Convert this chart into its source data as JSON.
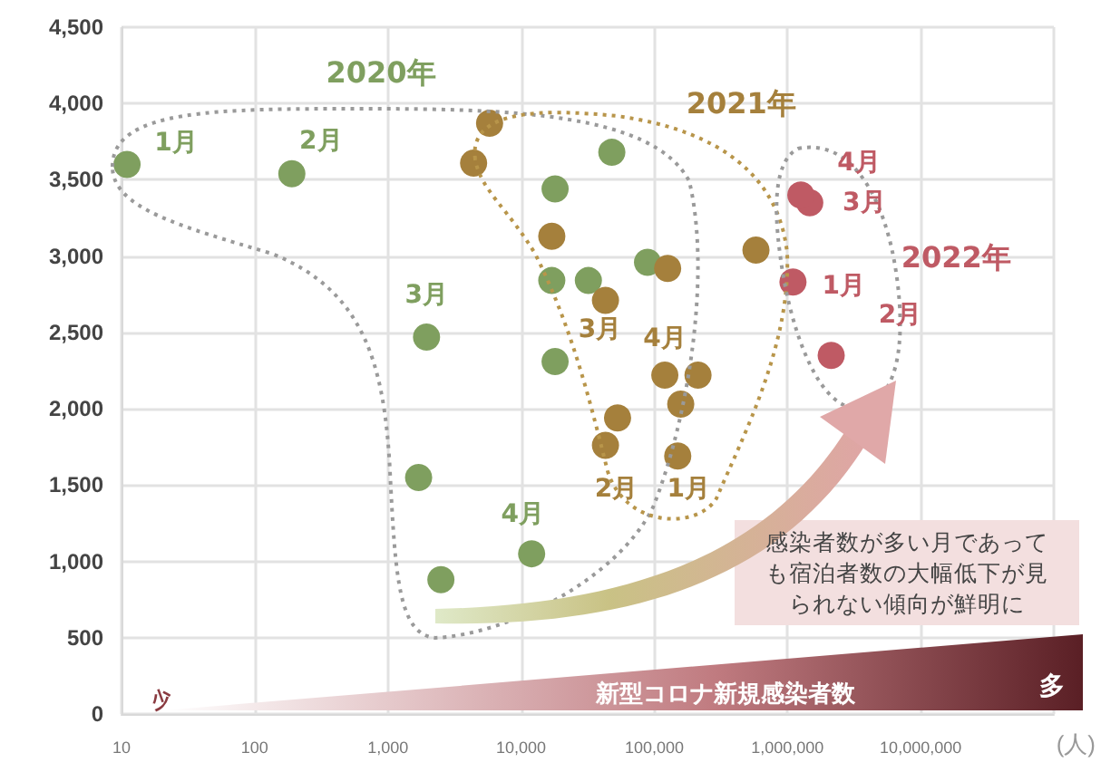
{
  "chart_data": {
    "type": "scatter",
    "xlabel": "(人)",
    "log": "x",
    "grid": true,
    "marker": "circle",
    "xlim": [
      10,
      100000000
    ],
    "xticks": [
      10,
      100,
      {
        "value": 1000,
        "label": "1,000"
      },
      {
        "value": 10000,
        "label": "10,000"
      },
      {
        "value": 100000,
        "label": "100,000"
      },
      {
        "value": 1000000,
        "label": "1,000,000"
      },
      {
        "value": 10000000,
        "label": "10,000,000"
      },
      {
        "value": 100000000,
        "label": null
      }
    ],
    "ylim": [
      0,
      4500
    ],
    "yticks": [
      0,
      500,
      {
        "value": 1000,
        "label": "1,000"
      },
      {
        "value": 1500,
        "label": "1,500"
      },
      {
        "value": 2000,
        "label": "2,000"
      },
      {
        "value": 2500,
        "label": "2,500"
      },
      {
        "value": 3000,
        "label": "3,000"
      },
      {
        "value": 3500,
        "label": "3,500"
      },
      {
        "value": 4000,
        "label": "4,000"
      },
      {
        "value": 4500,
        "label": "4,500"
      }
    ],
    "series": [
      {
        "name": "2020年",
        "color": "#7f9f5f",
        "x": [
          11,
          190,
          1950,
          12000,
          1700,
          2500,
          17000,
          18000,
          18000,
          32000,
          48000,
          89000
        ],
        "values": [
          3600,
          3540,
          2470,
          1050,
          1550,
          880,
          2840,
          3440,
          2310,
          2840,
          3680,
          2960
        ]
      },
      {
        "name": "2021年",
        "color": "#a5803c",
        "x": [
          150000,
          43000,
          43000,
          120000,
          5800,
          4400,
          17000,
          126000,
          580000,
          213000,
          158000,
          53000
        ],
        "values": [
          1690,
          1760,
          2710,
          2220,
          3870,
          3610,
          3130,
          2920,
          3040,
          2220,
          2030,
          1940
        ]
      },
      {
        "name": "2022年",
        "color": "#bf5a64",
        "x": [
          1100000,
          2130000,
          1470000,
          1260000
        ],
        "values": [
          2830,
          2350,
          3350,
          3400
        ]
      }
    ],
    "annotations": [
      {
        "text": "1月",
        "x": 11,
        "y": 3600
      },
      {
        "text": "2月",
        "x": 190,
        "y": 3540
      },
      {
        "text": "3月",
        "x": 1950,
        "y": 2470
      },
      {
        "text": "4月",
        "x": 12000,
        "y": 1050
      },
      {
        "text": "1月",
        "x": 150000,
        "y": 1690
      },
      {
        "text": "2月",
        "x": 43000,
        "y": 1760
      },
      {
        "text": "3月",
        "x": 43000,
        "y": 2710
      },
      {
        "text": "4月",
        "x": 120000,
        "y": 2220
      },
      {
        "text": "1月",
        "x": 1100000,
        "y": 2830
      },
      {
        "text": "2月",
        "x": 2130000,
        "y": 2350
      },
      {
        "text": "3月",
        "x": 1470000,
        "y": 3350
      },
      {
        "text": "4月",
        "x": 1260000,
        "y": 3400
      },
      "感染者数が多い月であっても宿泊者数の大幅低下が見られない傾向が鮮明に",
      "新型コロナ新規感染者数",
      "少",
      "多"
    ]
  }
}
